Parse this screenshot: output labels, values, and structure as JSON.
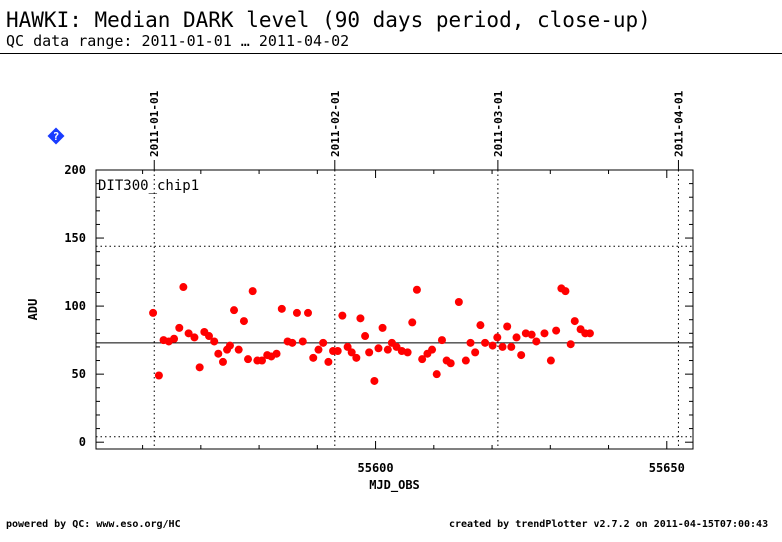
{
  "header": {
    "title": "HAWKI: Median DARK level (90 days period, close-up)",
    "subtitle": "QC data range: 2011-01-01 … 2011-04-02"
  },
  "footer": {
    "left": "powered by QC: www.eso.org/HC",
    "right": "created by trendPlotter v2.7.2 on 2011-04-15T07:00:43"
  },
  "help_icon": {
    "name": "help-icon",
    "symbol": "?",
    "color": "#1a3cff"
  },
  "chart_data": {
    "type": "scatter",
    "panel_label": "DIT300_chip1",
    "xlabel": "MJD_OBS",
    "ylabel": "ADU",
    "xlim": [
      55552.0,
      55654.5
    ],
    "ylim": [
      -5,
      200
    ],
    "x_ticks": [
      55600,
      55650
    ],
    "y_ticks": [
      0,
      50,
      100,
      150,
      200
    ],
    "date_markers": [
      {
        "label": "2011-01-01",
        "mjd": 55562
      },
      {
        "label": "2011-02-01",
        "mjd": 55593
      },
      {
        "label": "2011-03-01",
        "mjd": 55621
      },
      {
        "label": "2011-04-01",
        "mjd": 55652
      }
    ],
    "reference_line": 73,
    "limit_lines": [
      4,
      144
    ],
    "point_color": "#ff0000",
    "points": [
      [
        55561.8,
        95
      ],
      [
        55562.8,
        49
      ],
      [
        55563.6,
        75
      ],
      [
        55564.5,
        74
      ],
      [
        55565.4,
        76
      ],
      [
        55566.3,
        84
      ],
      [
        55567.0,
        114
      ],
      [
        55567.9,
        80
      ],
      [
        55568.9,
        77
      ],
      [
        55569.8,
        55
      ],
      [
        55570.6,
        81
      ],
      [
        55571.4,
        78
      ],
      [
        55572.3,
        74
      ],
      [
        55573.0,
        65
      ],
      [
        55573.8,
        59
      ],
      [
        55574.5,
        68
      ],
      [
        55575.0,
        71
      ],
      [
        55575.7,
        97
      ],
      [
        55576.5,
        68
      ],
      [
        55577.4,
        89
      ],
      [
        55578.1,
        61
      ],
      [
        55578.9,
        111
      ],
      [
        55579.7,
        60
      ],
      [
        55580.5,
        60
      ],
      [
        55581.4,
        64
      ],
      [
        55582.1,
        63
      ],
      [
        55583.0,
        65
      ],
      [
        55583.9,
        98
      ],
      [
        55584.9,
        74
      ],
      [
        55585.7,
        73
      ],
      [
        55586.5,
        95
      ],
      [
        55587.5,
        74
      ],
      [
        55588.4,
        95
      ],
      [
        55589.3,
        62
      ],
      [
        55590.2,
        68
      ],
      [
        55591.0,
        73
      ],
      [
        55591.9,
        59
      ],
      [
        55592.7,
        67
      ],
      [
        55593.5,
        67
      ],
      [
        55594.3,
        93
      ],
      [
        55595.2,
        70
      ],
      [
        55595.9,
        66
      ],
      [
        55596.7,
        62
      ],
      [
        55597.4,
        91
      ],
      [
        55598.2,
        78
      ],
      [
        55598.9,
        66
      ],
      [
        55599.8,
        45
      ],
      [
        55600.5,
        69
      ],
      [
        55601.2,
        84
      ],
      [
        55602.1,
        68
      ],
      [
        55602.8,
        73
      ],
      [
        55603.6,
        70
      ],
      [
        55604.5,
        67
      ],
      [
        55605.5,
        66
      ],
      [
        55606.3,
        88
      ],
      [
        55607.1,
        112
      ],
      [
        55608.0,
        61
      ],
      [
        55608.9,
        65
      ],
      [
        55609.7,
        68
      ],
      [
        55610.5,
        50
      ],
      [
        55611.4,
        75
      ],
      [
        55612.2,
        60
      ],
      [
        55612.9,
        58
      ],
      [
        55614.3,
        103
      ],
      [
        55615.5,
        60
      ],
      [
        55616.3,
        73
      ],
      [
        55617.1,
        66
      ],
      [
        55618.0,
        86
      ],
      [
        55618.8,
        73
      ],
      [
        55620.1,
        71
      ],
      [
        55620.9,
        77
      ],
      [
        55621.8,
        70
      ],
      [
        55622.6,
        85
      ],
      [
        55623.3,
        70
      ],
      [
        55624.2,
        77
      ],
      [
        55625.0,
        64
      ],
      [
        55625.8,
        80
      ],
      [
        55626.8,
        79
      ],
      [
        55627.6,
        74
      ],
      [
        55629.0,
        80
      ],
      [
        55630.1,
        60
      ],
      [
        55631.0,
        82
      ],
      [
        55631.9,
        113
      ],
      [
        55632.6,
        111
      ],
      [
        55633.5,
        72
      ],
      [
        55634.2,
        89
      ],
      [
        55635.2,
        83
      ],
      [
        55636.0,
        80
      ],
      [
        55636.8,
        80
      ]
    ]
  }
}
